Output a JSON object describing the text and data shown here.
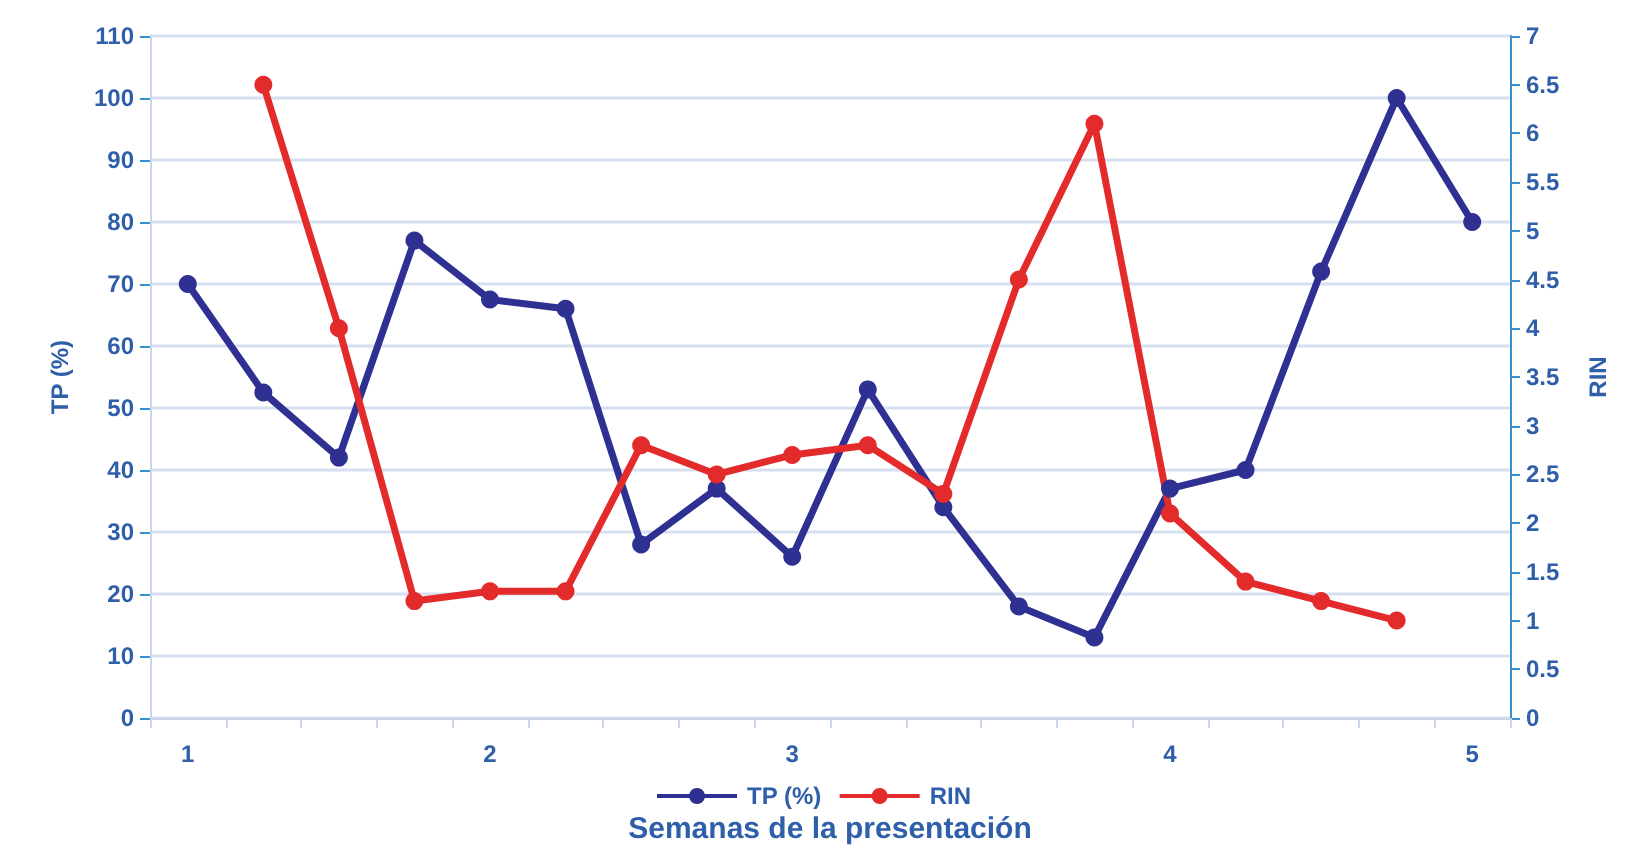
{
  "chart_data": {
    "type": "line",
    "xlabel": "Semanas de la presentación",
    "ylabel": "TP (%)",
    "y2label": "RIN",
    "categories": [
      "1",
      null,
      null,
      null,
      "2",
      null,
      null,
      null,
      "3",
      null,
      null,
      null,
      null,
      "4",
      null,
      null,
      null,
      "5"
    ],
    "series": [
      {
        "name": "TP (%)",
        "color": "#2e3192",
        "values": [
          70,
          52.5,
          42,
          77,
          67.5,
          66,
          28,
          37,
          26,
          53,
          34,
          18,
          13,
          37,
          40,
          72,
          100,
          80
        ]
      },
      {
        "name": "RIN",
        "color": "#e32b2b",
        "axis": "y2",
        "values": [
          null,
          6.5,
          4,
          1.2,
          1.3,
          1.3,
          2.8,
          2.5,
          2.7,
          2.8,
          2.3,
          4.5,
          6.1,
          2.1,
          1.4,
          1.2,
          1.0,
          null
        ]
      }
    ],
    "ylim": [
      0,
      110
    ],
    "yticks": [
      0,
      10,
      20,
      30,
      40,
      50,
      60,
      70,
      80,
      90,
      100,
      110
    ],
    "y2lim": [
      0,
      7
    ],
    "y2ticks": [
      0,
      0.5,
      1,
      1.5,
      2,
      2.5,
      3,
      3.5,
      4,
      4.5,
      5,
      5.5,
      6,
      6.5,
      7
    ],
    "grid": "y",
    "legend": "bottom",
    "marker": "circle",
    "line_style": "solid"
  }
}
